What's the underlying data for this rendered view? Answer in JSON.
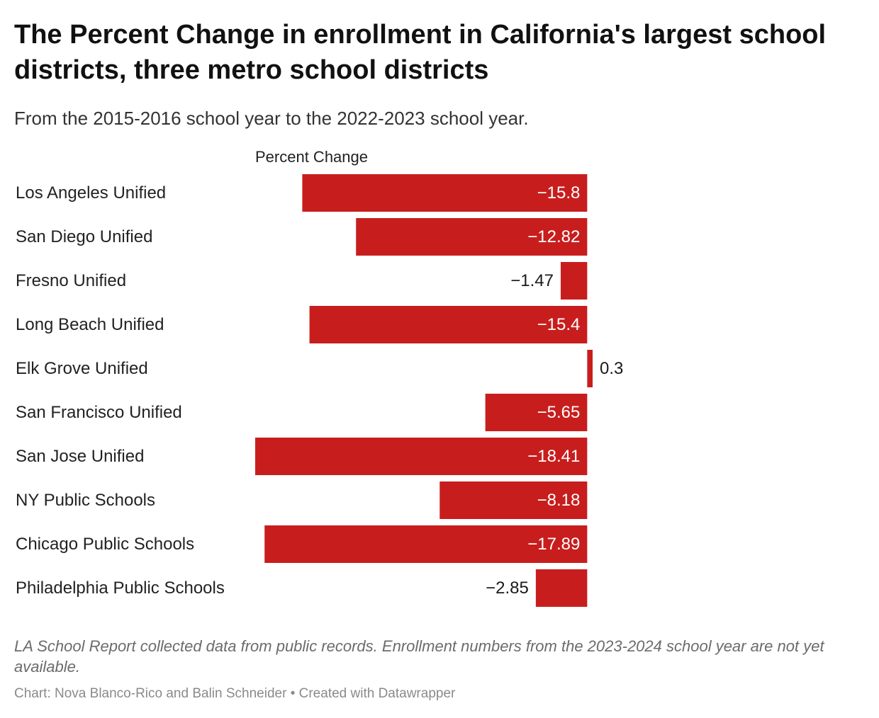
{
  "title": "The Percent Change in enrollment in California's largest school districts, three metro school districts",
  "subtitle": "From the 2015-2016 school year to the 2022-2023 school year.",
  "note": "LA School Report collected data from public records. Enrollment numbers from the 2023-2024 school year are not yet available.",
  "byline": "Chart: Nova Blanco-Rico and Balin Schneider • Created with Datawrapper",
  "colors": {
    "bar": "#c71e1d",
    "label_inside": "#ffffff",
    "label_outside": "#1a1a1a"
  },
  "chart_data": {
    "type": "bar",
    "orientation": "horizontal",
    "column_header": "Percent Change",
    "categories": [
      "Los Angeles Unified",
      "San Diego Unified",
      "Fresno Unified",
      "Long Beach Unified",
      "Elk Grove Unified",
      "San Francisco Unified",
      "San Jose Unified",
      "NY Public Schools",
      "Chicago Public Schools",
      "Philadelphia Public Schools"
    ],
    "values": [
      -15.8,
      -12.82,
      -1.47,
      -15.4,
      0.3,
      -5.65,
      -18.41,
      -8.18,
      -17.89,
      -2.85
    ],
    "value_labels": [
      "−15.8",
      "−12.82",
      "−1.47",
      "−15.4",
      "0.3",
      "−5.65",
      "−18.41",
      "−8.18",
      "−17.89",
      "−2.85"
    ],
    "xlim": [
      -18.41,
      0.3
    ],
    "grid": false,
    "legend": "none"
  }
}
